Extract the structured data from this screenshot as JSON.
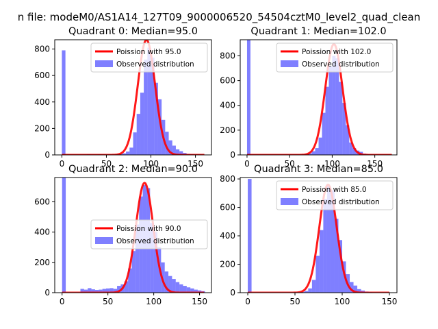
{
  "figure": {
    "suptitle": "n file: modeM0/AS1A14_127T09_9000006520_54504cztM0_level2_quad_clean"
  },
  "colors": {
    "histogram": "#0000ff",
    "poisson": "#ff0000"
  },
  "chart_data": [
    {
      "type": "bar",
      "title": "Quadrant 0: Median=95.0",
      "median": 95.0,
      "xlim": [
        -8,
        168
      ],
      "ylim": [
        0,
        870
      ],
      "xticks": [
        0,
        50,
        100,
        150
      ],
      "yticks": [
        0,
        200,
        400,
        600,
        800
      ],
      "legend": {
        "position": "top-right",
        "entries": [
          "Poission with 95.0",
          "Observed distribution"
        ]
      },
      "series": [
        {
          "name": "Observed distribution",
          "kind": "histogram",
          "bin_width": 4,
          "bins": [
            [
              0,
              790
            ],
            [
              24,
              3
            ],
            [
              28,
              5
            ],
            [
              32,
              3
            ],
            [
              40,
              4
            ],
            [
              48,
              3
            ],
            [
              52,
              3
            ],
            [
              60,
              5
            ],
            [
              64,
              6
            ],
            [
              68,
              12
            ],
            [
              72,
              25
            ],
            [
              76,
              55
            ],
            [
              80,
              170
            ],
            [
              84,
              310
            ],
            [
              88,
              470
            ],
            [
              92,
              720
            ],
            [
              96,
              810
            ],
            [
              100,
              735
            ],
            [
              104,
              545
            ],
            [
              108,
              420
            ],
            [
              112,
              265
            ],
            [
              116,
              175
            ],
            [
              120,
              110
            ],
            [
              124,
              70
            ],
            [
              128,
              42
            ],
            [
              132,
              28
            ],
            [
              136,
              15
            ],
            [
              140,
              8
            ],
            [
              144,
              5
            ],
            [
              148,
              3
            ]
          ]
        },
        {
          "name": "Poission with 95.0",
          "kind": "poisson-curve",
          "lambda": 95.0,
          "peak": 870,
          "x_range": [
            0,
            160
          ]
        }
      ]
    },
    {
      "type": "bar",
      "title": "Quadrant 1: Median=102.0",
      "median": 102.0,
      "xlim": [
        -8,
        176
      ],
      "ylim": [
        0,
        930
      ],
      "xticks": [
        0,
        50,
        100,
        150
      ],
      "yticks": [
        0,
        200,
        400,
        600,
        800
      ],
      "legend": {
        "position": "top-right",
        "entries": [
          "Poission with 102.0",
          "Observed distribution"
        ]
      },
      "series": [
        {
          "name": "Observed distribution",
          "kind": "histogram",
          "bin_width": 4,
          "bins": [
            [
              0,
              930
            ],
            [
              64,
              3
            ],
            [
              68,
              5
            ],
            [
              72,
              12
            ],
            [
              76,
              30
            ],
            [
              80,
              55
            ],
            [
              84,
              140
            ],
            [
              88,
              340
            ],
            [
              92,
              550
            ],
            [
              96,
              715
            ],
            [
              100,
              800
            ],
            [
              104,
              780
            ],
            [
              108,
              590
            ],
            [
              112,
              420
            ],
            [
              116,
              240
            ],
            [
              120,
              100
            ],
            [
              124,
              55
            ],
            [
              128,
              35
            ],
            [
              132,
              25
            ],
            [
              136,
              10
            ],
            [
              140,
              6
            ],
            [
              144,
              3
            ]
          ]
        },
        {
          "name": "Poission with 102.0",
          "kind": "poisson-curve",
          "lambda": 102.0,
          "peak": 895,
          "x_range": [
            0,
            170
          ]
        }
      ]
    },
    {
      "type": "bar",
      "title": "Quadrant 2: Median=90.0",
      "median": 90.0,
      "xlim": [
        -8,
        163
      ],
      "ylim": [
        0,
        760
      ],
      "xticks": [
        0,
        50,
        100,
        150
      ],
      "yticks": [
        0,
        200,
        400,
        600
      ],
      "legend": {
        "position": "center-right",
        "entries": [
          "Poission with 90.0",
          "Observed distribution"
        ]
      },
      "series": [
        {
          "name": "Observed distribution",
          "kind": "histogram",
          "bin_width": 4,
          "bins": [
            [
              0,
              760
            ],
            [
              20,
              25
            ],
            [
              24,
              20
            ],
            [
              28,
              30
            ],
            [
              32,
              22
            ],
            [
              36,
              18
            ],
            [
              40,
              20
            ],
            [
              44,
              25
            ],
            [
              48,
              28
            ],
            [
              52,
              30
            ],
            [
              56,
              25
            ],
            [
              60,
              45
            ],
            [
              64,
              55
            ],
            [
              68,
              75
            ],
            [
              72,
              160
            ],
            [
              76,
              275
            ],
            [
              80,
              450
            ],
            [
              84,
              635
            ],
            [
              88,
              710
            ],
            [
              92,
              690
            ],
            [
              96,
              460
            ],
            [
              100,
              400
            ],
            [
              104,
              300
            ],
            [
              108,
              200
            ],
            [
              112,
              140
            ],
            [
              116,
              110
            ],
            [
              120,
              90
            ],
            [
              124,
              70
            ],
            [
              128,
              55
            ],
            [
              132,
              45
            ],
            [
              136,
              35
            ],
            [
              140,
              28
            ],
            [
              144,
              20
            ],
            [
              148,
              15
            ],
            [
              152,
              10
            ]
          ]
        },
        {
          "name": "Poission with 90.0",
          "kind": "poisson-curve",
          "lambda": 90.0,
          "peak": 725,
          "x_range": [
            0,
            155
          ]
        }
      ]
    },
    {
      "type": "bar",
      "title": "Quadrant 3: Median=85.0",
      "median": 85.0,
      "xlim": [
        -8,
        158
      ],
      "ylim": [
        0,
        810
      ],
      "xticks": [
        0,
        50,
        100,
        150
      ],
      "yticks": [
        0,
        200,
        400,
        600,
        800
      ],
      "legend": {
        "position": "top-right",
        "entries": [
          "Poission with 85.0",
          "Observed distribution"
        ]
      },
      "series": [
        {
          "name": "Observed distribution",
          "kind": "histogram",
          "bin_width": 4,
          "bins": [
            [
              0,
              800
            ],
            [
              52,
              3
            ],
            [
              56,
              5
            ],
            [
              60,
              12
            ],
            [
              64,
              30
            ],
            [
              68,
              90
            ],
            [
              72,
              260
            ],
            [
              76,
              440
            ],
            [
              80,
              660
            ],
            [
              84,
              750
            ],
            [
              88,
              720
            ],
            [
              92,
              520
            ],
            [
              96,
              370
            ],
            [
              100,
              220
            ],
            [
              104,
              130
            ],
            [
              108,
              75
            ],
            [
              112,
              50
            ],
            [
              116,
              25
            ],
            [
              120,
              15
            ],
            [
              124,
              8
            ],
            [
              128,
              5
            ]
          ]
        },
        {
          "name": "Poission with 85.0",
          "kind": "poisson-curve",
          "lambda": 85.0,
          "peak": 760,
          "x_range": [
            0,
            150
          ]
        }
      ]
    }
  ]
}
